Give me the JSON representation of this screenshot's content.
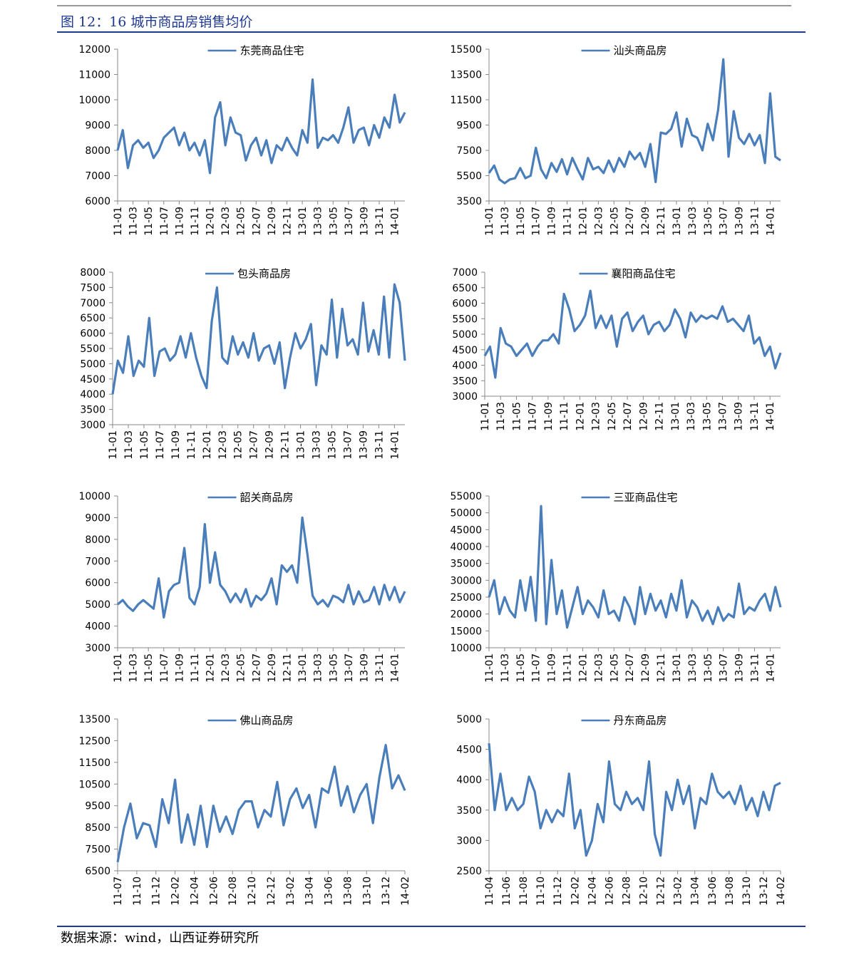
{
  "title": "图 12：16 城市商品房销售均价",
  "source": "数据来源：wind，山西证券研究所",
  "chart_data": [
    {
      "type": "line",
      "ylim": [
        6000,
        12000
      ],
      "yticks": [
        6000,
        7000,
        8000,
        9000,
        10000,
        11000,
        12000
      ],
      "categories": [
        "11-01",
        null,
        null,
        "11-03",
        null,
        null,
        "11-05",
        null,
        null,
        "11-07",
        null,
        null,
        "11-09",
        null,
        null,
        "11-11",
        null,
        null,
        "12-01",
        null,
        null,
        "12-03",
        null,
        null,
        "12-05",
        null,
        null,
        "12-07",
        null,
        null,
        "12-09",
        null,
        null,
        "12-11",
        null,
        null,
        "13-01",
        null,
        null,
        "13-03",
        null,
        null,
        "13-05",
        null,
        null,
        "13-07",
        null,
        null,
        "13-09",
        null,
        null,
        "13-11",
        null,
        null,
        "14-01",
        null,
        null
      ],
      "series": [
        {
          "name": "东莞商品住宅",
          "color": "#4a7ebb",
          "values": [
            8000,
            8800,
            7300,
            8200,
            8400,
            8100,
            8300,
            7700,
            8000,
            8500,
            8700,
            8900,
            8200,
            8700,
            8000,
            8300,
            7800,
            8400,
            7100,
            9300,
            9900,
            8200,
            9300,
            8700,
            8600,
            7600,
            8200,
            8500,
            7800,
            8400,
            7500,
            8200,
            8000,
            8500,
            8100,
            7800,
            8800,
            8300,
            10800,
            8100,
            8500,
            8400,
            8600,
            8300,
            8900,
            9700,
            8300,
            8800,
            8900,
            8200,
            9000,
            8500,
            9300,
            8900,
            10200,
            9100,
            9500
          ]
        }
      ]
    },
    {
      "type": "line",
      "ylim": [
        3500,
        15500
      ],
      "yticks": [
        3500,
        5500,
        7500,
        9500,
        11500,
        13500,
        15500
      ],
      "categories": [
        "11-01",
        null,
        null,
        "11-03",
        null,
        null,
        "11-05",
        null,
        null,
        "11-07",
        null,
        null,
        "11-09",
        null,
        null,
        "11-11",
        null,
        null,
        "12-01",
        null,
        null,
        "12-03",
        null,
        null,
        "12-05",
        null,
        null,
        "12-07",
        null,
        null,
        "12-09",
        null,
        null,
        "12-11",
        null,
        null,
        "13-01",
        null,
        null,
        "13-03",
        null,
        null,
        "13-05",
        null,
        null,
        "13-07",
        null,
        null,
        "13-09",
        null,
        null,
        "13-11",
        null,
        null,
        "14-01",
        null,
        null
      ],
      "series": [
        {
          "name": "汕头商品房",
          "color": "#4a7ebb",
          "values": [
            5700,
            6300,
            5200,
            4900,
            5200,
            5300,
            6100,
            5300,
            5500,
            7700,
            6000,
            5300,
            6500,
            5800,
            6800,
            5600,
            6900,
            6000,
            5200,
            6900,
            6000,
            6200,
            5700,
            6700,
            5800,
            6900,
            6200,
            7400,
            6800,
            7300,
            6200,
            8000,
            5000,
            8900,
            8800,
            9200,
            10500,
            7800,
            10000,
            8700,
            8500,
            7500,
            9600,
            8300,
            10700,
            14700,
            7000,
            10600,
            8500,
            8000,
            8800,
            7900,
            8700,
            6500,
            12000,
            7000,
            6700
          ]
        }
      ]
    },
    {
      "type": "line",
      "ylim": [
        3000,
        8000
      ],
      "yticks": [
        3000,
        3500,
        4000,
        4500,
        5000,
        5500,
        6000,
        6500,
        7000,
        7500,
        8000
      ],
      "categories": [
        "11-01",
        null,
        null,
        "11-03",
        null,
        null,
        "11-05",
        null,
        null,
        "11-07",
        null,
        null,
        "11-09",
        null,
        null,
        "11-11",
        null,
        null,
        "12-01",
        null,
        null,
        "12-03",
        null,
        null,
        "12-05",
        null,
        null,
        "12-07",
        null,
        null,
        "12-09",
        null,
        null,
        "12-11",
        null,
        null,
        "13-01",
        null,
        null,
        "13-03",
        null,
        null,
        "13-05",
        null,
        null,
        "13-07",
        null,
        null,
        "13-09",
        null,
        null,
        "13-11",
        null,
        null,
        "14-01",
        null,
        null
      ],
      "series": [
        {
          "name": "包头商品房",
          "color": "#4a7ebb",
          "values": [
            4000,
            5100,
            4700,
            5900,
            4600,
            5100,
            4900,
            6500,
            4600,
            5400,
            5500,
            5100,
            5300,
            5900,
            5200,
            6000,
            5200,
            4600,
            4200,
            6400,
            7500,
            5200,
            5000,
            5900,
            5300,
            5700,
            5200,
            6000,
            5100,
            5500,
            5600,
            5000,
            5700,
            4200,
            5200,
            6000,
            5500,
            5800,
            6300,
            4300,
            5600,
            5300,
            7100,
            5200,
            6800,
            5600,
            5800,
            5300,
            7000,
            5400,
            6100,
            5300,
            7200,
            5200,
            7600,
            7000,
            5100
          ]
        }
      ]
    },
    {
      "type": "line",
      "ylim": [
        3000,
        7000
      ],
      "yticks": [
        3000,
        3500,
        4000,
        4500,
        5000,
        5500,
        6000,
        6500,
        7000
      ],
      "categories": [
        "11-01",
        null,
        null,
        "11-03",
        null,
        null,
        "11-05",
        null,
        null,
        "11-07",
        null,
        null,
        "11-09",
        null,
        null,
        "11-11",
        null,
        null,
        "12-01",
        null,
        null,
        "12-03",
        null,
        null,
        "12-05",
        null,
        null,
        "12-07",
        null,
        null,
        "12-09",
        null,
        null,
        "12-11",
        null,
        null,
        "13-01",
        null,
        null,
        "13-03",
        null,
        null,
        "13-05",
        null,
        null,
        "13-07",
        null,
        null,
        "13-09",
        null,
        null,
        "13-11",
        null,
        null,
        "14-01",
        null,
        null
      ],
      "series": [
        {
          "name": "襄阳商品住宅",
          "color": "#4a7ebb",
          "values": [
            4300,
            4600,
            3600,
            5200,
            4700,
            4600,
            4300,
            4500,
            4700,
            4300,
            4600,
            4800,
            4800,
            5000,
            4700,
            6300,
            5800,
            5100,
            5300,
            5600,
            6400,
            5200,
            5600,
            5200,
            5600,
            4600,
            5500,
            5700,
            5100,
            5400,
            5600,
            5000,
            5300,
            5400,
            5100,
            5300,
            5800,
            5500,
            4900,
            5700,
            5400,
            5600,
            5500,
            5600,
            5500,
            5900,
            5400,
            5500,
            5300,
            5100,
            5600,
            4700,
            4900,
            4300,
            4600,
            3900,
            4400
          ]
        }
      ]
    },
    {
      "type": "line",
      "ylim": [
        3000,
        10000
      ],
      "yticks": [
        3000,
        4000,
        5000,
        6000,
        7000,
        8000,
        9000,
        10000
      ],
      "categories": [
        "11-01",
        null,
        null,
        "11-03",
        null,
        null,
        "11-05",
        null,
        null,
        "11-07",
        null,
        null,
        "11-09",
        null,
        null,
        "11-11",
        null,
        null,
        "12-01",
        null,
        null,
        "12-03",
        null,
        null,
        "12-05",
        null,
        null,
        "12-07",
        null,
        null,
        "12-09",
        null,
        null,
        "12-11",
        null,
        null,
        "13-01",
        null,
        null,
        "13-03",
        null,
        null,
        "13-05",
        null,
        null,
        "13-07",
        null,
        null,
        "13-09",
        null,
        null,
        "13-11",
        null,
        null,
        "14-01",
        null,
        null
      ],
      "series": [
        {
          "name": "韶关商品房",
          "color": "#4a7ebb",
          "values": [
            5000,
            5200,
            4900,
            4700,
            5000,
            5200,
            5000,
            4800,
            6200,
            4400,
            5600,
            5900,
            6000,
            7600,
            5300,
            5000,
            5800,
            8700,
            6000,
            7400,
            5900,
            5600,
            5100,
            5500,
            5100,
            5700,
            4900,
            5400,
            5200,
            5500,
            6200,
            5000,
            6800,
            6500,
            6800,
            6000,
            9000,
            7300,
            5400,
            5000,
            5200,
            4900,
            5400,
            5300,
            5100,
            5900,
            5000,
            5600,
            5100,
            5200,
            5800,
            5000,
            5900,
            5200,
            5800,
            5100,
            5600
          ]
        }
      ]
    },
    {
      "type": "line",
      "ylim": [
        10000,
        55000
      ],
      "yticks": [
        10000,
        15000,
        20000,
        25000,
        30000,
        35000,
        40000,
        45000,
        50000,
        55000
      ],
      "categories": [
        "11-01",
        null,
        null,
        "11-03",
        null,
        null,
        "11-05",
        null,
        null,
        "11-07",
        null,
        null,
        "11-09",
        null,
        null,
        "11-11",
        null,
        null,
        "12-01",
        null,
        null,
        "12-03",
        null,
        null,
        "12-05",
        null,
        null,
        "12-07",
        null,
        null,
        "12-09",
        null,
        null,
        "12-11",
        null,
        null,
        "13-01",
        null,
        null,
        "13-03",
        null,
        null,
        "13-05",
        null,
        null,
        "13-07",
        null,
        null,
        "13-09",
        null,
        null,
        "13-11",
        null,
        null,
        "14-01",
        null,
        null
      ],
      "series": [
        {
          "name": "三亚商品住宅",
          "color": "#4a7ebb",
          "values": [
            25000,
            30000,
            20000,
            25000,
            21000,
            19000,
            30000,
            21000,
            31000,
            18000,
            52000,
            17000,
            36000,
            20000,
            27000,
            16000,
            22000,
            28000,
            20000,
            24000,
            22000,
            19000,
            27000,
            20000,
            21000,
            18000,
            25000,
            22000,
            17000,
            28000,
            20000,
            26000,
            21000,
            24000,
            19000,
            26000,
            21000,
            30000,
            19000,
            24000,
            22000,
            18000,
            21000,
            17000,
            22000,
            18000,
            20000,
            19000,
            29000,
            20000,
            22000,
            21000,
            24000,
            26000,
            21000,
            28000,
            22000
          ]
        }
      ]
    },
    {
      "type": "line",
      "ylim": [
        6500,
        13500
      ],
      "yticks": [
        6500,
        7500,
        8500,
        9500,
        10500,
        11500,
        12500,
        13500
      ],
      "categories": [
        "11-07",
        null,
        null,
        "11-10",
        null,
        null,
        "11-12",
        null,
        null,
        "12-02",
        null,
        null,
        "12-04",
        null,
        null,
        "12-06",
        null,
        null,
        "12-08",
        null,
        null,
        "12-10",
        null,
        null,
        "12-12",
        null,
        null,
        "13-02",
        null,
        null,
        "13-04",
        null,
        null,
        "13-06",
        null,
        null,
        "13-08",
        null,
        null,
        "13-10",
        null,
        null,
        "13-12",
        null,
        null,
        "14-02"
      ],
      "series": [
        {
          "name": "佛山商品房",
          "color": "#4a7ebb",
          "values": [
            6900,
            8500,
            9600,
            8000,
            8700,
            8600,
            7600,
            9800,
            8700,
            10700,
            7800,
            9100,
            7700,
            9500,
            7600,
            9500,
            8300,
            9000,
            8200,
            9300,
            9700,
            9700,
            8500,
            9300,
            9000,
            10600,
            8600,
            9800,
            10300,
            9400,
            10000,
            8500,
            10300,
            10100,
            11300,
            9500,
            10400,
            9200,
            10000,
            10500,
            8700,
            10800,
            12300,
            10300,
            10900,
            10200
          ]
        }
      ]
    },
    {
      "type": "line",
      "ylim": [
        2500,
        5000
      ],
      "yticks": [
        2500,
        3000,
        3500,
        4000,
        4500,
        5000
      ],
      "categories": [
        "11-04",
        null,
        null,
        "11-06",
        null,
        null,
        "11-08",
        null,
        null,
        "11-10",
        null,
        null,
        "11-12",
        null,
        null,
        "12-02",
        null,
        null,
        "12-04",
        null,
        null,
        "12-06",
        null,
        null,
        "12-08",
        null,
        null,
        "12-10",
        null,
        null,
        "12-12",
        null,
        null,
        "13-02",
        null,
        null,
        "13-04",
        null,
        null,
        "13-06",
        null,
        null,
        "13-08",
        null,
        null,
        "13-10",
        null,
        null,
        "13-12",
        null,
        null,
        "14-02"
      ],
      "series": [
        {
          "name": "丹东商品房",
          "color": "#4a7ebb",
          "values": [
            4600,
            3500,
            4100,
            3500,
            3700,
            3500,
            3600,
            4050,
            3800,
            3200,
            3500,
            3300,
            3500,
            3400,
            4100,
            3200,
            3500,
            2750,
            3000,
            3600,
            3300,
            4300,
            3600,
            3500,
            3800,
            3600,
            3700,
            3500,
            4300,
            3100,
            2750,
            3800,
            3500,
            4000,
            3600,
            3900,
            3200,
            3700,
            3600,
            4100,
            3800,
            3700,
            3800,
            3600,
            3900,
            3500,
            3700,
            3400,
            3800,
            3500,
            3900,
            3950
          ]
        }
      ]
    }
  ]
}
